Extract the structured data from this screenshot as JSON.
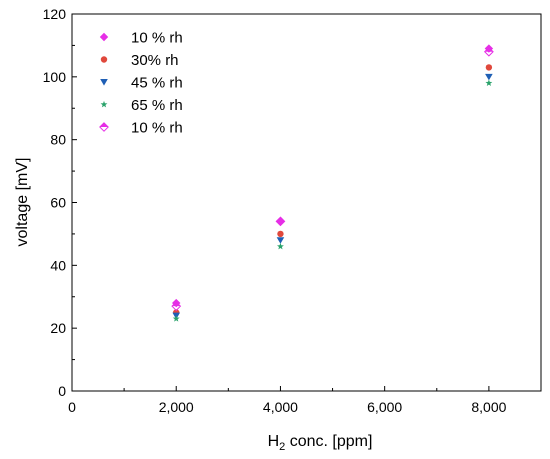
{
  "chart_data": {
    "type": "scatter",
    "xlabel_main": "H",
    "xlabel_sub": "2",
    "xlabel_rest": " conc. [ppm]",
    "ylabel": "voltage [mV]",
    "xlim": [
      0,
      9000
    ],
    "ylim": [
      0,
      120
    ],
    "x_ticks": [
      0,
      2000,
      4000,
      6000,
      8000
    ],
    "x_tick_labels": [
      "0",
      "2,000",
      "4,000",
      "6,000",
      "8,000"
    ],
    "y_ticks": [
      0,
      20,
      40,
      60,
      80,
      100,
      120
    ],
    "y_tick_labels": [
      "0",
      "20",
      "40",
      "60",
      "80",
      "100",
      "120"
    ],
    "grid": false,
    "legend_position": "top-left",
    "series": [
      {
        "name": "10 % rh",
        "marker": "diamond-filled",
        "color": "#e62ee6",
        "x": [
          2000,
          4000,
          8000
        ],
        "y": [
          28,
          54,
          109
        ]
      },
      {
        "name": "30% rh",
        "marker": "circle",
        "color": "#e0483c",
        "x": [
          2000,
          4000,
          8000
        ],
        "y": [
          25,
          50,
          103
        ]
      },
      {
        "name": "45 % rh",
        "marker": "triangle-down",
        "color": "#1f5fb5",
        "x": [
          2000,
          4000,
          8000
        ],
        "y": [
          24,
          48,
          100
        ]
      },
      {
        "name": "65 % rh",
        "marker": "star",
        "color": "#2aa36b",
        "x": [
          2000,
          4000,
          8000
        ],
        "y": [
          23,
          46,
          98
        ]
      },
      {
        "name": "10 % rh",
        "marker": "diamond-half",
        "color": "#e62ee6",
        "x": [
          2000,
          4000,
          8000
        ],
        "y": [
          27,
          54,
          108
        ]
      }
    ]
  }
}
